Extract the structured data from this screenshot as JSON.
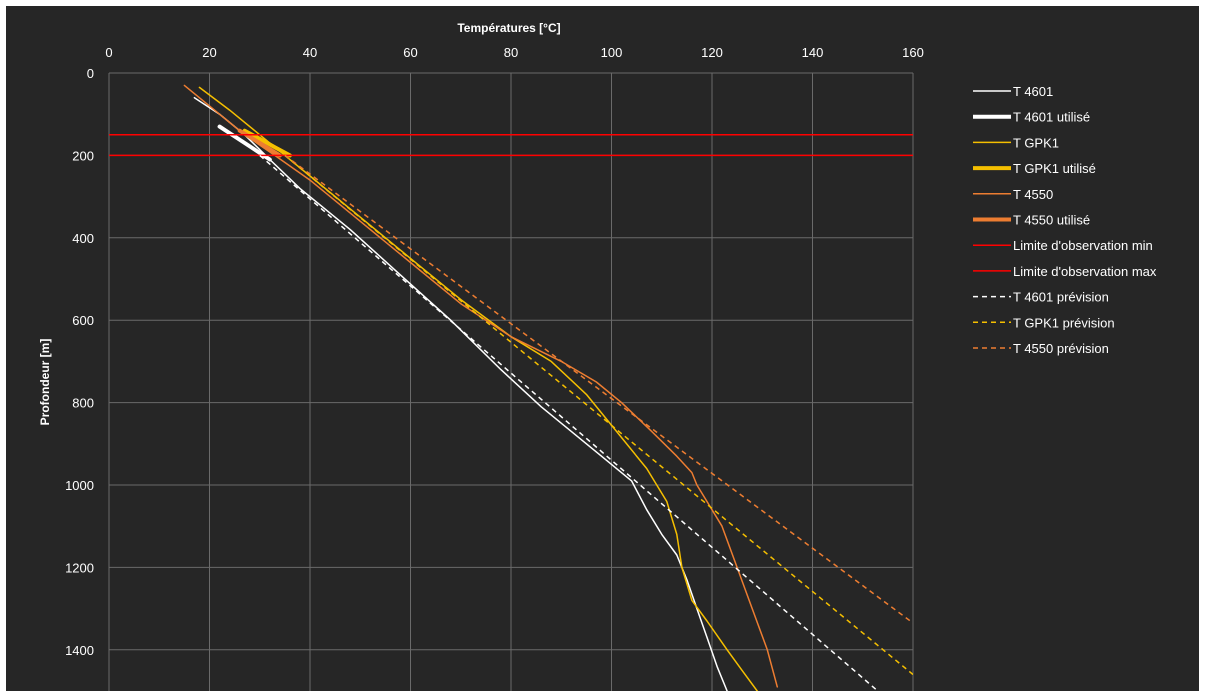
{
  "chart_data": {
    "type": "line",
    "title": "",
    "xlabel": "Températures [°C]",
    "ylabel": "Profondeur [m]",
    "x_axis_position": "top",
    "y_axis_inverted": true,
    "xlim": [
      0,
      160
    ],
    "ylim": [
      0,
      1500
    ],
    "xticks": [
      0,
      20,
      40,
      60,
      80,
      100,
      120,
      140,
      160
    ],
    "yticks": [
      0,
      200,
      400,
      600,
      800,
      1000,
      1200,
      1400
    ],
    "grid": true,
    "legend_position": "right",
    "series": [
      {
        "name": "T 4601",
        "color": "#ffffff",
        "width": 1.5,
        "dash": "",
        "x": [
          17,
          22,
          27,
          32,
          38,
          48,
          58,
          68,
          78,
          86,
          92,
          98,
          104,
          107,
          110,
          113,
          115,
          117,
          119,
          121,
          123
        ],
        "y": [
          60,
          100,
          150,
          210,
          280,
          380,
          490,
          600,
          720,
          810,
          870,
          930,
          990,
          1060,
          1120,
          1170,
          1230,
          1300,
          1370,
          1440,
          1500
        ]
      },
      {
        "name": "T 4601 utilisé",
        "color": "#ffffff",
        "width": 4,
        "dash": "",
        "x": [
          22,
          27,
          32
        ],
        "y": [
          130,
          170,
          210
        ]
      },
      {
        "name": "T GPK1",
        "color": "#f5bf00",
        "width": 1.5,
        "dash": "",
        "x": [
          18,
          24,
          30,
          35,
          40,
          50,
          60,
          70,
          80,
          88,
          95,
          101,
          107,
          111,
          113,
          114,
          116,
          119,
          123,
          126,
          129
        ],
        "y": [
          35,
          90,
          150,
          200,
          250,
          350,
          450,
          550,
          640,
          700,
          780,
          870,
          960,
          1040,
          1120,
          1200,
          1280,
          1330,
          1400,
          1450,
          1500
        ]
      },
      {
        "name": "T GPK1 utilisé",
        "color": "#f5bf00",
        "width": 4,
        "dash": "",
        "x": [
          27,
          30,
          33,
          36
        ],
        "y": [
          140,
          160,
          180,
          200
        ]
      },
      {
        "name": "T 4550",
        "color": "#ed7d31",
        "width": 1.5,
        "dash": "",
        "x": [
          15,
          21,
          27,
          33,
          40,
          50,
          60,
          70,
          80,
          90,
          97,
          102,
          108,
          113,
          116,
          117,
          119,
          122,
          125,
          128,
          131,
          133
        ],
        "y": [
          30,
          90,
          150,
          200,
          260,
          360,
          460,
          560,
          640,
          700,
          750,
          800,
          870,
          930,
          970,
          1000,
          1040,
          1100,
          1200,
          1300,
          1400,
          1490
        ]
      },
      {
        "name": "T 4550 utilisé",
        "color": "#ed7d31",
        "width": 4,
        "dash": "",
        "x": [
          26,
          30,
          34
        ],
        "y": [
          140,
          170,
          200
        ]
      },
      {
        "name": "Limite d'observation min",
        "color": "#ff0000",
        "width": 1.5,
        "dash": "",
        "x": [
          0,
          160
        ],
        "y": [
          150,
          150
        ]
      },
      {
        "name": "Limite d'observation max",
        "color": "#ff0000",
        "width": 1.5,
        "dash": "",
        "x": [
          0,
          160
        ],
        "y": [
          200,
          200
        ]
      },
      {
        "name": "T 4601 prévision",
        "color": "#ffffff",
        "width": 1.5,
        "dash": "5,4",
        "x": [
          30,
          153
        ],
        "y": [
          200,
          1500
        ]
      },
      {
        "name": "T GPK1 prévision",
        "color": "#f5bf00",
        "width": 1.5,
        "dash": "5,4",
        "x": [
          35,
          160
        ],
        "y": [
          200,
          1460
        ]
      },
      {
        "name": "T 4550 prévision",
        "color": "#ed7d31",
        "width": 1.5,
        "dash": "5,4",
        "x": [
          35,
          160
        ],
        "y": [
          200,
          1335
        ]
      }
    ]
  }
}
